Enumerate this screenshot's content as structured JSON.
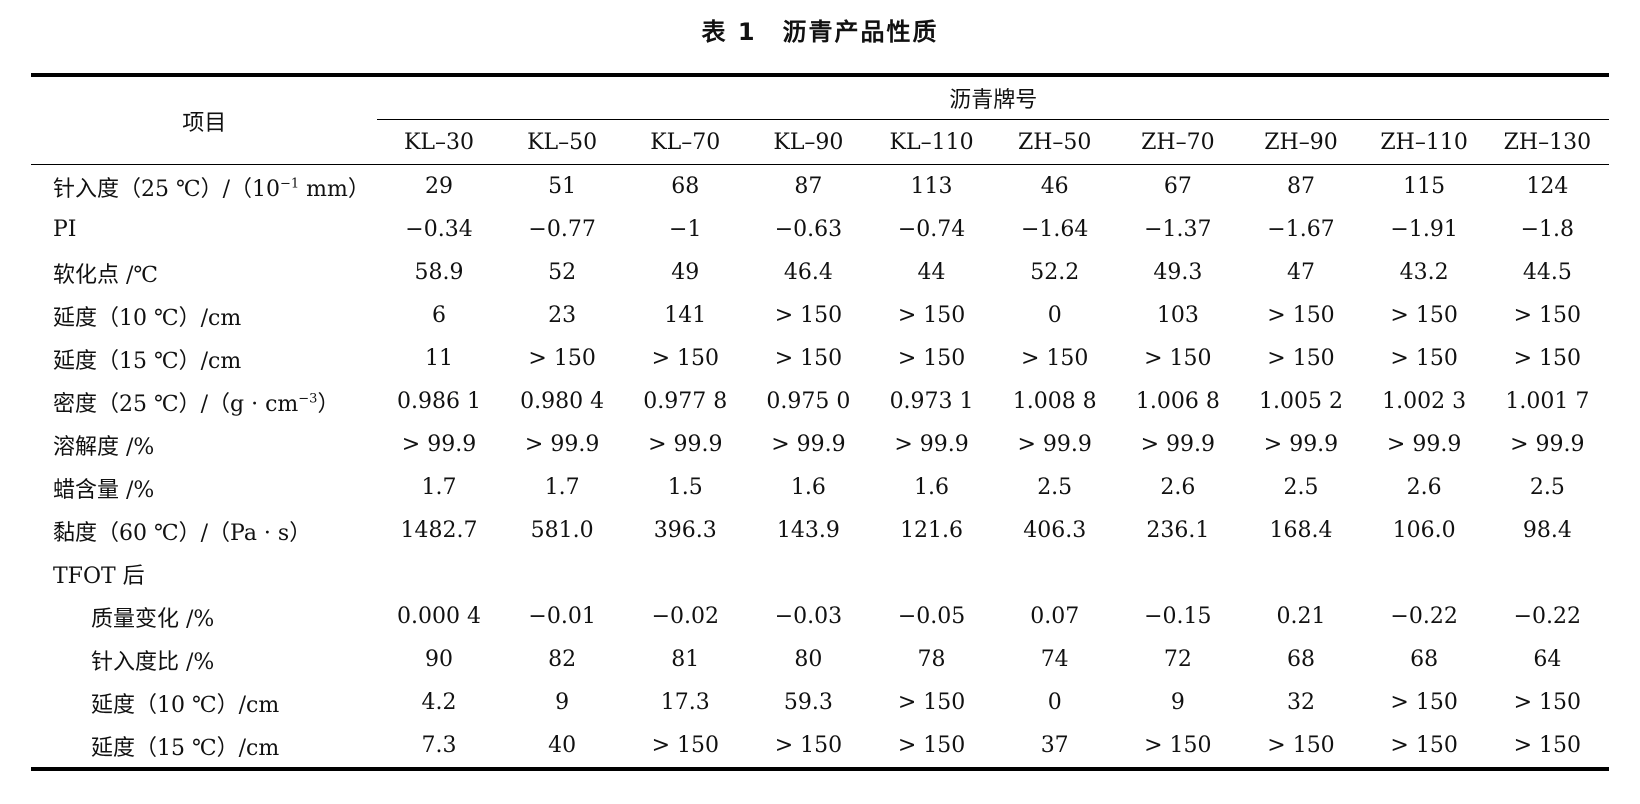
{
  "title": "表 1　沥青产品性质",
  "table": {
    "item_header": "项目",
    "group_header": "沥青牌号",
    "columns": [
      "KL–30",
      "KL–50",
      "KL–70",
      "KL–90",
      "KL–110",
      "ZH–50",
      "ZH–70",
      "ZH–90",
      "ZH–110",
      "ZH–130"
    ],
    "rows": [
      {
        "label": {
          "pre": "针入度（25 ℃）/（10",
          "sup": "−1",
          "post": " mm）"
        },
        "indent": false,
        "section": false,
        "values": [
          "29",
          "51",
          "68",
          "87",
          "113",
          "46",
          "67",
          "87",
          "115",
          "124"
        ]
      },
      {
        "label": {
          "pre": "PI",
          "sup": "",
          "post": ""
        },
        "indent": false,
        "section": false,
        "values": [
          "−0.34",
          "−0.77",
          "−1",
          "−0.63",
          "−0.74",
          "−1.64",
          "−1.37",
          "−1.67",
          "−1.91",
          "−1.8"
        ]
      },
      {
        "label": {
          "pre": "软化点 /℃",
          "sup": "",
          "post": ""
        },
        "indent": false,
        "section": false,
        "values": [
          "58.9",
          "52",
          "49",
          "46.4",
          "44",
          "52.2",
          "49.3",
          "47",
          "43.2",
          "44.5"
        ]
      },
      {
        "label": {
          "pre": "延度（10 ℃）/cm",
          "sup": "",
          "post": ""
        },
        "indent": false,
        "section": false,
        "values": [
          "6",
          "23",
          "141",
          "> 150",
          "> 150",
          "0",
          "103",
          "> 150",
          "> 150",
          "> 150"
        ]
      },
      {
        "label": {
          "pre": "延度（15 ℃）/cm",
          "sup": "",
          "post": ""
        },
        "indent": false,
        "section": false,
        "values": [
          "11",
          "> 150",
          "> 150",
          "> 150",
          "> 150",
          "> 150",
          "> 150",
          "> 150",
          "> 150",
          "> 150"
        ]
      },
      {
        "label": {
          "pre": "密度（25 ℃）/（g · cm",
          "sup": "−3",
          "post": "）"
        },
        "indent": false,
        "section": false,
        "values": [
          "0.986 1",
          "0.980 4",
          "0.977 8",
          "0.975 0",
          "0.973 1",
          "1.008 8",
          "1.006 8",
          "1.005 2",
          "1.002 3",
          "1.001 7"
        ]
      },
      {
        "label": {
          "pre": "溶解度 /%",
          "sup": "",
          "post": ""
        },
        "indent": false,
        "section": false,
        "values": [
          "> 99.9",
          "> 99.9",
          "> 99.9",
          "> 99.9",
          "> 99.9",
          "> 99.9",
          "> 99.9",
          "> 99.9",
          "> 99.9",
          "> 99.9"
        ]
      },
      {
        "label": {
          "pre": "蜡含量 /%",
          "sup": "",
          "post": ""
        },
        "indent": false,
        "section": false,
        "values": [
          "1.7",
          "1.7",
          "1.5",
          "1.6",
          "1.6",
          "2.5",
          "2.6",
          "2.5",
          "2.6",
          "2.5"
        ]
      },
      {
        "label": {
          "pre": "黏度（60 ℃）/（Pa · s）",
          "sup": "",
          "post": ""
        },
        "indent": false,
        "section": false,
        "values": [
          "1482.7",
          "581.0",
          "396.3",
          "143.9",
          "121.6",
          "406.3",
          "236.1",
          "168.4",
          "106.0",
          "98.4"
        ]
      },
      {
        "label": {
          "pre": "TFOT 后",
          "sup": "",
          "post": ""
        },
        "indent": false,
        "section": true,
        "values": []
      },
      {
        "label": {
          "pre": "质量变化 /%",
          "sup": "",
          "post": ""
        },
        "indent": true,
        "section": false,
        "values": [
          "0.000 4",
          "−0.01",
          "−0.02",
          "−0.03",
          "−0.05",
          "0.07",
          "−0.15",
          "0.21",
          "−0.22",
          "−0.22"
        ]
      },
      {
        "label": {
          "pre": "针入度比 /%",
          "sup": "",
          "post": ""
        },
        "indent": true,
        "section": false,
        "values": [
          "90",
          "82",
          "81",
          "80",
          "78",
          "74",
          "72",
          "68",
          "68",
          "64"
        ]
      },
      {
        "label": {
          "pre": "延度（10 ℃）/cm",
          "sup": "",
          "post": ""
        },
        "indent": true,
        "section": false,
        "values": [
          "4.2",
          "9",
          "17.3",
          "59.3",
          "> 150",
          "0",
          "9",
          "32",
          "> 150",
          "> 150"
        ]
      },
      {
        "label": {
          "pre": "延度（15 ℃）/cm",
          "sup": "",
          "post": ""
        },
        "indent": true,
        "section": false,
        "values": [
          "7.3",
          "40",
          "> 150",
          "> 150",
          "> 150",
          "37",
          "> 150",
          "> 150",
          "> 150",
          "> 150"
        ]
      }
    ]
  }
}
